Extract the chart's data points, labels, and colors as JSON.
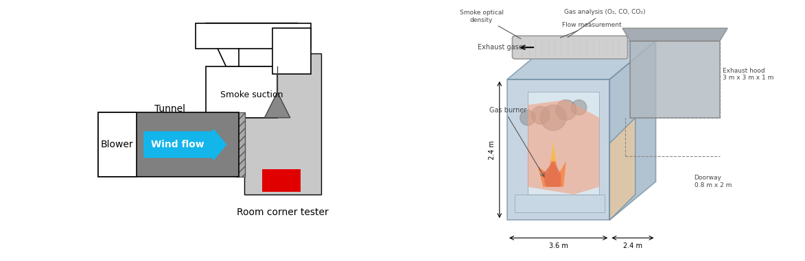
{
  "bg_color": "#ffffff",
  "fig_width": 11.73,
  "fig_height": 3.81,
  "left_panel": {
    "smoke_suction_label": "Smoke suction",
    "tunnel_label": "Tunnel",
    "blower_label": "Blower",
    "wind_flow_label": "Wind flow",
    "room_corner_label": "Room corner tester",
    "tunnel_color": "#808080",
    "blower_color": "#ffffff",
    "room_color": "#c8c8c8",
    "arrow_color": "#00bfff",
    "red_box_color": "#e00000",
    "hatch_color": "#888888"
  },
  "right_panel": {
    "labels": {
      "smoke_optical": "Smoke optical\ndensity",
      "gas_analysis": "Gas analysis (O₂, CO, CO₂)",
      "flow_measurement": "Flow measurement",
      "exhaust_gases": "Exhaust gases",
      "gas_burner": "Gas burner",
      "exhaust_hood": "Exhaust hood\n3 m x 3 m x 1 m",
      "doorway": "Doorway\n0.8 m x 2 m",
      "dim_24_left": "2.4 m",
      "dim_36": "3.6 m",
      "dim_24_right": "2.4 m"
    }
  }
}
